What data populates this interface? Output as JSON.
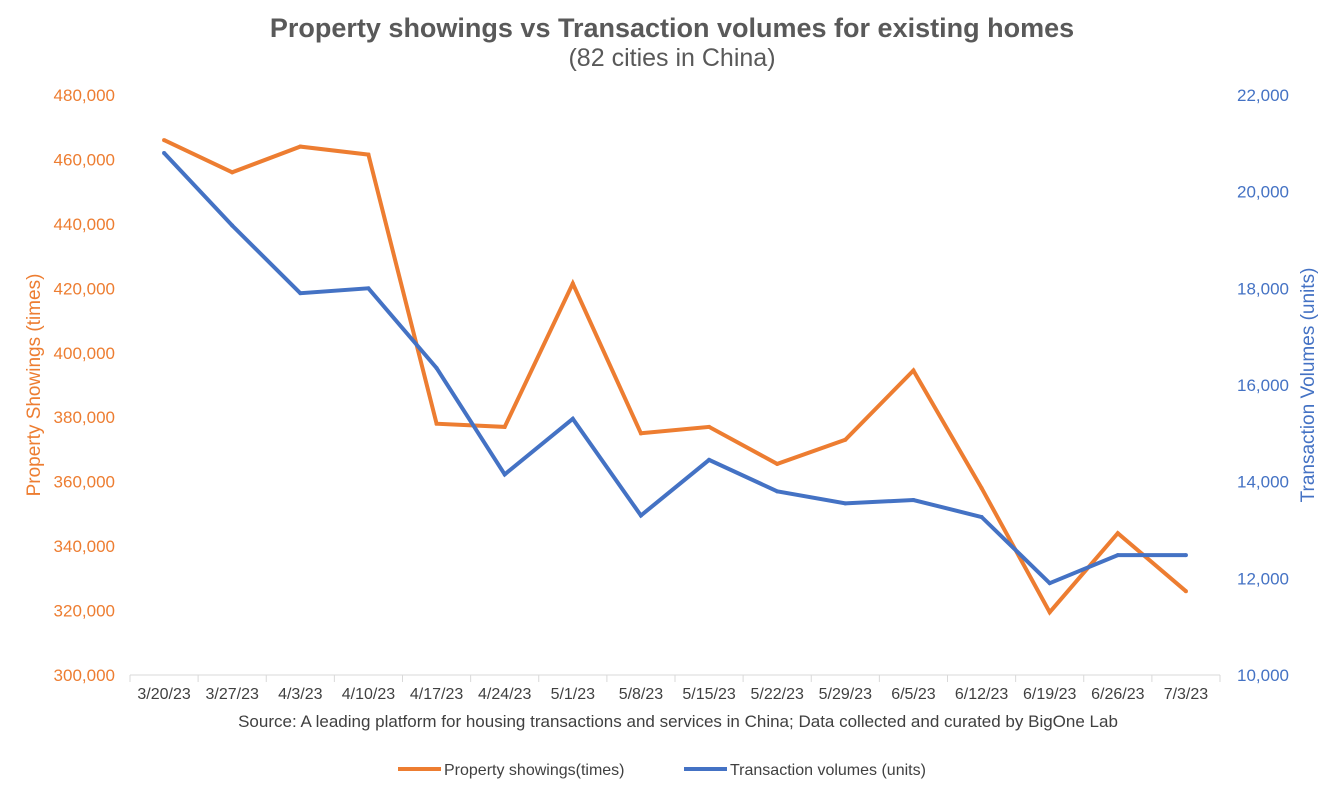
{
  "chart_data": {
    "type": "line",
    "title": "Property showings vs Transaction volumes for existing homes",
    "subtitle": "(82 cities in China)",
    "categories": [
      "3/20/23",
      "3/27/23",
      "4/3/23",
      "4/10/23",
      "4/17/23",
      "4/24/23",
      "5/1/23",
      "5/8/23",
      "5/15/23",
      "5/22/23",
      "5/29/23",
      "6/5/23",
      "6/12/23",
      "6/19/23",
      "6/26/23",
      "7/3/23"
    ],
    "series": [
      {
        "name": "Property showings(times)",
        "axis": "left",
        "color": "#ED7D31",
        "values": [
          466000,
          456000,
          464000,
          461500,
          378000,
          377000,
          421500,
          375000,
          377000,
          365500,
          373000,
          394500,
          358000,
          319500,
          344000,
          326000
        ]
      },
      {
        "name": "Transaction volumes (units)",
        "axis": "right",
        "color": "#4472C4",
        "values": [
          20800,
          19300,
          17900,
          18000,
          16350,
          14150,
          15300,
          13300,
          14450,
          13800,
          13550,
          13620,
          13270,
          11900,
          12480,
          12480
        ]
      }
    ],
    "left_axis": {
      "label": "Property Showings (times)",
      "ylim": [
        300000,
        480000
      ],
      "ticks": [
        "300,000",
        "320,000",
        "340,000",
        "360,000",
        "380,000",
        "400,000",
        "420,000",
        "440,000",
        "460,000",
        "480,000"
      ],
      "color": "#ED7D31"
    },
    "right_axis": {
      "label": "Transaction Volumes (units)",
      "ylim": [
        10000,
        22000
      ],
      "ticks": [
        "10,000",
        "12,000",
        "14,000",
        "16,000",
        "18,000",
        "20,000",
        "22,000"
      ],
      "color": "#4472C4"
    },
    "source": "Source: A leading platform for housing transactions and services in China; Data collected and curated by BigOne Lab",
    "grid": false,
    "legend_position": "bottom"
  }
}
